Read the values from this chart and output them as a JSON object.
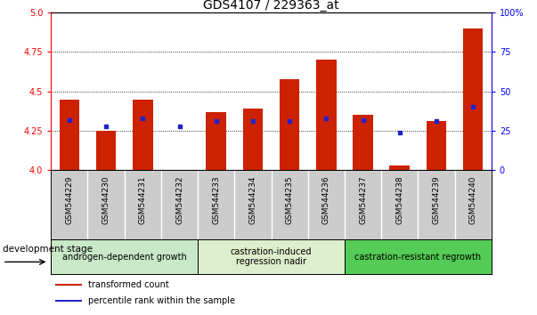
{
  "title": "GDS4107 / 229363_at",
  "samples": [
    "GSM544229",
    "GSM544230",
    "GSM544231",
    "GSM544232",
    "GSM544233",
    "GSM544234",
    "GSM544235",
    "GSM544236",
    "GSM544237",
    "GSM544238",
    "GSM544239",
    "GSM544240"
  ],
  "transformed_count": [
    4.45,
    4.25,
    4.45,
    4.0,
    4.37,
    4.39,
    4.58,
    4.7,
    4.35,
    4.03,
    4.31,
    4.9
  ],
  "percentile_rank": [
    4.32,
    4.28,
    4.33,
    4.28,
    4.31,
    4.31,
    4.31,
    4.33,
    4.32,
    4.24,
    4.31,
    4.4
  ],
  "ylim_left": [
    4.0,
    5.0
  ],
  "ylim_right": [
    0,
    100
  ],
  "yticks_left": [
    4.0,
    4.25,
    4.5,
    4.75,
    5.0
  ],
  "yticks_right": [
    0,
    25,
    50,
    75,
    100
  ],
  "bar_color": "#cc2200",
  "percentile_color": "#2222cc",
  "bar_bottom": 4.0,
  "groups": [
    {
      "label": "androgen-dependent growth",
      "start": 0,
      "end": 3,
      "color": "#c8e8c8"
    },
    {
      "label": "castration-induced\nregression nadir",
      "start": 4,
      "end": 7,
      "color": "#ddeecc"
    },
    {
      "label": "castration-resistant regrowth",
      "start": 8,
      "end": 11,
      "color": "#55cc55"
    }
  ],
  "legend_items": [
    {
      "label": "transformed count",
      "color": "#cc2200"
    },
    {
      "label": "percentile rank within the sample",
      "color": "#2222cc"
    }
  ],
  "dev_stage_label": "development stage",
  "label_bg": "#cccccc",
  "plot_bg": "#ffffff",
  "title_fontsize": 10,
  "tick_fontsize": 7,
  "label_fontsize": 6.5,
  "group_fontsize": 7,
  "legend_fontsize": 7,
  "dev_stage_fontsize": 7.5
}
